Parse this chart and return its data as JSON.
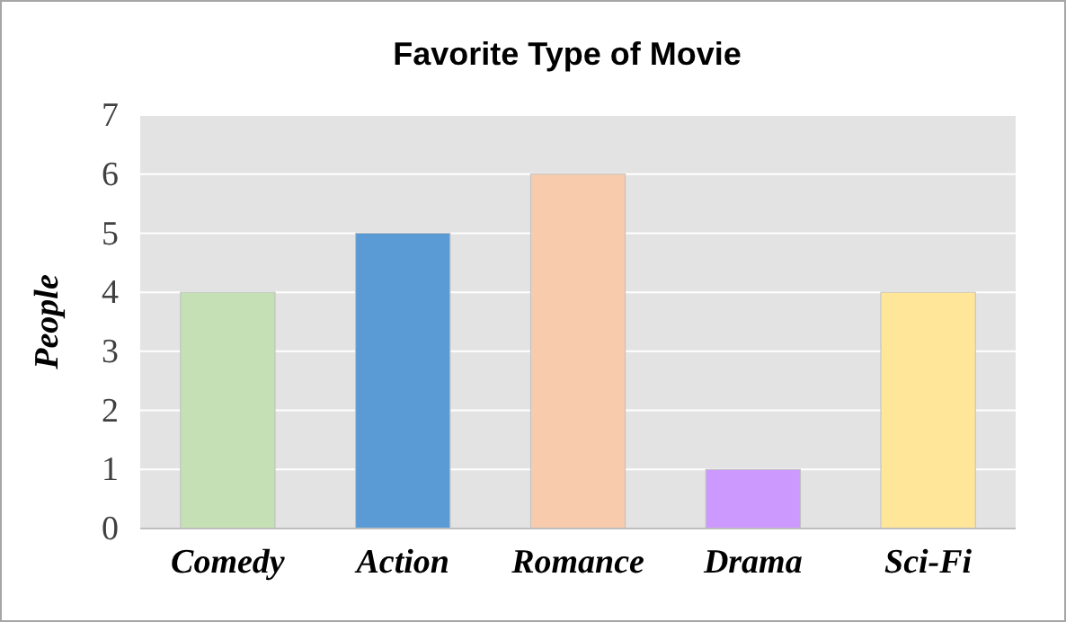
{
  "chart_data": {
    "type": "bar",
    "title": "Favorite Type of Movie",
    "ylabel": "People",
    "categories": [
      "Comedy",
      "Action",
      "Romance",
      "Drama",
      "Sci-Fi"
    ],
    "values": [
      4,
      5,
      6,
      1,
      4
    ],
    "colors": [
      "#c5e0b4",
      "#5b9bd5",
      "#f8cbad",
      "#cc99ff",
      "#ffe699"
    ],
    "ylim": [
      0,
      7
    ],
    "yticks": [
      0,
      1,
      2,
      3,
      4,
      5,
      6,
      7
    ],
    "grid": "y"
  }
}
